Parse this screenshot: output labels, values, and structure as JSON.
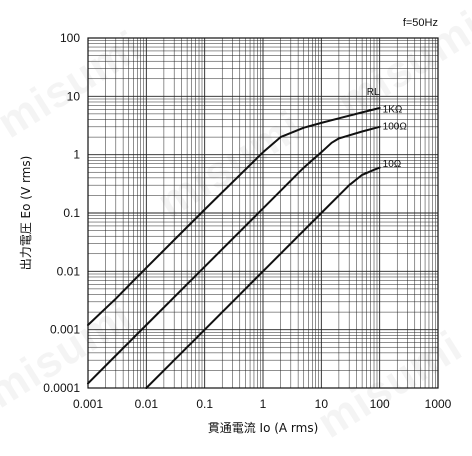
{
  "chart_data": {
    "type": "line",
    "title": "",
    "annotation": "f=50Hz",
    "xlabel": "貫通電流 Io (A rms)",
    "ylabel": "出力電圧 Eo (V rms)",
    "x_scale": "log",
    "y_scale": "log",
    "xlim": [
      0.001,
      1000
    ],
    "ylim": [
      0.0001,
      100
    ],
    "x_ticks": [
      "0.001",
      "0.01",
      "0.1",
      "1",
      "10",
      "100",
      "1000"
    ],
    "y_ticks": [
      "0.0001",
      "0.001",
      "0.01",
      "0.1",
      "1",
      "10",
      "100"
    ],
    "grid": true,
    "legend_title": "RL",
    "series": [
      {
        "name": "1KΩ",
        "x": [
          0.001,
          0.003,
          0.01,
          0.1,
          1,
          2,
          5,
          10,
          20,
          50,
          100
        ],
        "y": [
          0.0012,
          0.0034,
          0.0115,
          0.115,
          1.1,
          2.0,
          2.9,
          3.5,
          4.2,
          5.3,
          6.3
        ]
      },
      {
        "name": "100Ω",
        "x": [
          0.001,
          0.003,
          0.01,
          0.1,
          1,
          5,
          10,
          15,
          20,
          50,
          100
        ],
        "y": [
          0.00012,
          0.00036,
          0.0012,
          0.012,
          0.12,
          0.6,
          1.1,
          1.6,
          1.9,
          2.5,
          3.0
        ]
      },
      {
        "name": "10Ω",
        "x": [
          0.01,
          0.1,
          1,
          10,
          20,
          30,
          50,
          80,
          100
        ],
        "y": [
          0.0001,
          0.001,
          0.01,
          0.1,
          0.2,
          0.3,
          0.45,
          0.55,
          0.6
        ]
      }
    ]
  },
  "watermark": "misumi"
}
